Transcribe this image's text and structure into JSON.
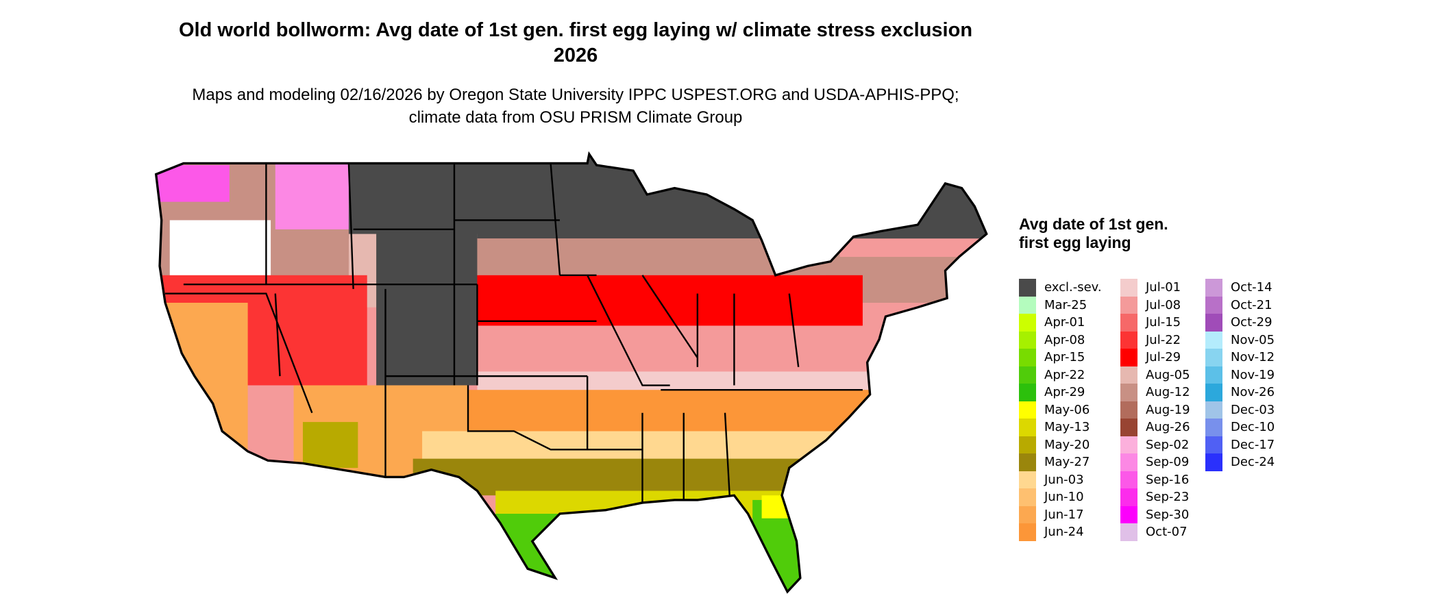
{
  "header": {
    "title": "Old world bollworm: Avg date of 1st gen. first egg laying w/ climate stress exclusion 2026",
    "subtitle": "Maps and modeling 02/16/2026 by Oregon State University IPPC USPEST.ORG and USDA-APHIS-PPQ; climate data from OSU PRISM Climate Group"
  },
  "legend": {
    "title": "Avg date of 1st gen. first egg laying",
    "columns": [
      [
        {
          "label": "excl.-sev.",
          "color": "#4a4a4a"
        },
        {
          "label": "Mar-25",
          "color": "#b4fcbe"
        },
        {
          "label": "Apr-01",
          "color": "#ccff00"
        },
        {
          "label": "Apr-08",
          "color": "#a6f000"
        },
        {
          "label": "Apr-15",
          "color": "#78dc00"
        },
        {
          "label": "Apr-22",
          "color": "#50cc0a"
        },
        {
          "label": "Apr-29",
          "color": "#2cc00c"
        },
        {
          "label": "May-06",
          "color": "#ffff00"
        },
        {
          "label": "May-13",
          "color": "#dcd800"
        },
        {
          "label": "May-20",
          "color": "#b8aa00"
        },
        {
          "label": "May-27",
          "color": "#9a860c"
        },
        {
          "label": "Jun-03",
          "color": "#ffd890"
        },
        {
          "label": "Jun-10",
          "color": "#fec070"
        },
        {
          "label": "Jun-17",
          "color": "#fca850"
        },
        {
          "label": "Jun-24",
          "color": "#fc9638"
        }
      ],
      [
        {
          "label": "Jul-01",
          "color": "#f4cccc"
        },
        {
          "label": "Jul-08",
          "color": "#f49a9a"
        },
        {
          "label": "Jul-15",
          "color": "#f66868"
        },
        {
          "label": "Jul-22",
          "color": "#fc3434"
        },
        {
          "label": "Jul-29",
          "color": "#ff0000"
        },
        {
          "label": "Aug-05",
          "color": "#e6b8b0"
        },
        {
          "label": "Aug-12",
          "color": "#c89084"
        },
        {
          "label": "Aug-19",
          "color": "#b26c5c"
        },
        {
          "label": "Aug-26",
          "color": "#984432"
        },
        {
          "label": "Sep-02",
          "color": "#fcb0dc"
        },
        {
          "label": "Sep-09",
          "color": "#fc88e4"
        },
        {
          "label": "Sep-16",
          "color": "#fc58e8"
        },
        {
          "label": "Sep-23",
          "color": "#fc2cec"
        },
        {
          "label": "Sep-30",
          "color": "#fc00fc"
        },
        {
          "label": "Oct-07",
          "color": "#e0c0e8"
        }
      ],
      [
        {
          "label": "Oct-14",
          "color": "#cc98d8"
        },
        {
          "label": "Oct-21",
          "color": "#b870c8"
        },
        {
          "label": "Oct-29",
          "color": "#a04cb8"
        },
        {
          "label": "Nov-05",
          "color": "#b4ecfc"
        },
        {
          "label": "Nov-12",
          "color": "#88d4f0"
        },
        {
          "label": "Nov-19",
          "color": "#5cc0e8"
        },
        {
          "label": "Nov-26",
          "color": "#2ca8dc"
        },
        {
          "label": "Dec-03",
          "color": "#a0c4e8"
        },
        {
          "label": "Dec-10",
          "color": "#7890ec"
        },
        {
          "label": "Dec-17",
          "color": "#5060f4"
        },
        {
          "label": "Dec-24",
          "color": "#2a30fc"
        }
      ]
    ]
  }
}
